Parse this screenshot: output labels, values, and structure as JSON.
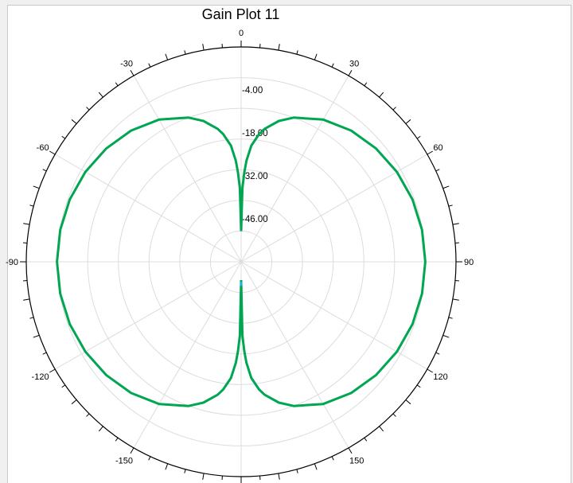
{
  "chart_data": {
    "type": "polar",
    "title": "Gain Plot 11",
    "angle_ticks": [
      {
        "deg": 0,
        "label": "0"
      },
      {
        "deg": 30,
        "label": "30"
      },
      {
        "deg": 60,
        "label": "60"
      },
      {
        "deg": 90,
        "label": "90"
      },
      {
        "deg": 120,
        "label": "120"
      },
      {
        "deg": 150,
        "label": "150"
      },
      {
        "deg": -30,
        "label": "-30"
      },
      {
        "deg": -60,
        "label": "-60"
      },
      {
        "deg": -90,
        "label": "-90"
      },
      {
        "deg": -120,
        "label": "-120"
      },
      {
        "deg": -150,
        "label": "-150"
      }
    ],
    "radial_ticks": [
      "-4.00",
      "-18.00",
      "-32.00",
      "-46.00"
    ],
    "radial_range": [
      -60,
      10
    ],
    "grid": true,
    "series": [
      {
        "color": "#00a651",
        "shape": "dipole",
        "theta_deg": [
          0,
          1,
          2,
          3,
          5,
          8,
          10,
          15,
          20,
          30,
          40,
          50,
          60,
          70,
          80,
          90,
          100,
          110,
          120,
          130,
          140,
          150,
          160,
          165,
          170,
          172,
          175,
          177,
          178,
          179,
          180
        ],
        "gain_db": [
          -50,
          -36,
          -31,
          -27,
          -22,
          -18,
          -16,
          -12.5,
          -10,
          -6.5,
          -4.2,
          -2.6,
          -1.4,
          -0.6,
          -0.15,
          0,
          -0.15,
          -0.6,
          -1.4,
          -2.6,
          -4.2,
          -6.5,
          -10,
          -12.5,
          -16,
          -18,
          -22,
          -27,
          -31,
          -36,
          -54
        ]
      }
    ],
    "highlight_color": "#1ab0e6"
  }
}
